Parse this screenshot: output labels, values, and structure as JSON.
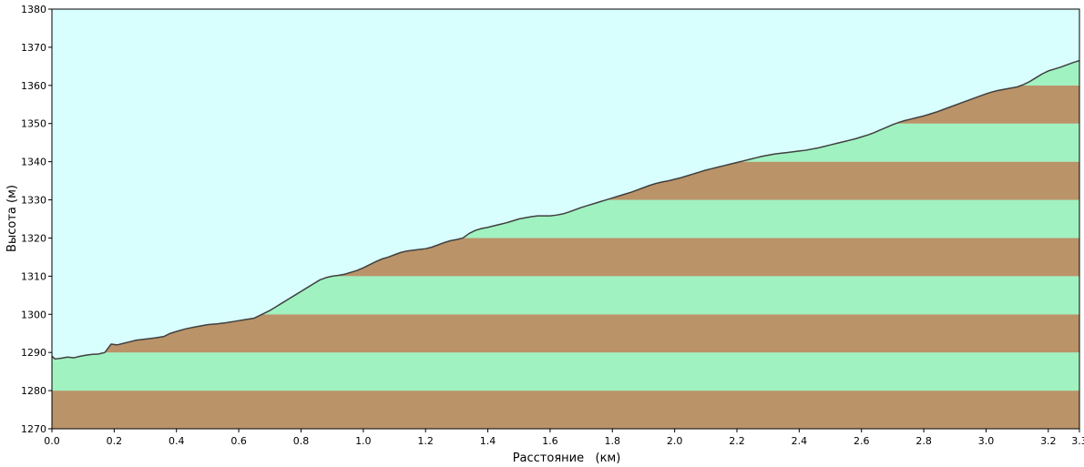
{
  "chart_data": {
    "type": "area",
    "title": "",
    "xlabel": "Расстояние   (км)",
    "ylabel": "Высота (м)",
    "xlim": [
      0.0,
      3.3
    ],
    "ylim": [
      1270,
      1380
    ],
    "x_ticks": [
      "0.0",
      "0.2",
      "0.4",
      "0.6",
      "0.8",
      "1.0",
      "1.2",
      "1.4",
      "1.6",
      "1.8",
      "2.0",
      "2.2",
      "2.4",
      "2.6",
      "2.8",
      "3.0",
      "3.2",
      "3.3"
    ],
    "x_tick_values": [
      0.0,
      0.2,
      0.4,
      0.6,
      0.8,
      1.0,
      1.2,
      1.4,
      1.6,
      1.8,
      2.0,
      2.2,
      2.4,
      2.6,
      2.8,
      3.0,
      3.2,
      3.3
    ],
    "y_ticks": [
      "1270",
      "1280",
      "1290",
      "1300",
      "1310",
      "1320",
      "1330",
      "1340",
      "1350",
      "1360",
      "1370",
      "1380"
    ],
    "y_tick_values": [
      1270,
      1280,
      1290,
      1300,
      1310,
      1320,
      1330,
      1340,
      1350,
      1360,
      1370,
      1380
    ],
    "band_step": 10,
    "grid": false,
    "legend": "none",
    "colors": {
      "sky": "#d9fefe",
      "band_brown": "#ba9369",
      "band_green": "#a0f2c0",
      "profile_line": "#404040",
      "axis": "#000000"
    },
    "series": [
      {
        "x": [
          0.0,
          0.01,
          0.03,
          0.05,
          0.07,
          0.09,
          0.11,
          0.13,
          0.15,
          0.17,
          0.19,
          0.21,
          0.23,
          0.25,
          0.27,
          0.3,
          0.33,
          0.36,
          0.38,
          0.4,
          0.43,
          0.46,
          0.48,
          0.5,
          0.53,
          0.56,
          0.59,
          0.62,
          0.65,
          0.68,
          0.7,
          0.72,
          0.74,
          0.76,
          0.78,
          0.8,
          0.82,
          0.84,
          0.86,
          0.88,
          0.9,
          0.92,
          0.94,
          0.96,
          0.98,
          1.0,
          1.02,
          1.04,
          1.06,
          1.08,
          1.1,
          1.12,
          1.14,
          1.16,
          1.18,
          1.2,
          1.22,
          1.24,
          1.26,
          1.28,
          1.3,
          1.32,
          1.34,
          1.36,
          1.38,
          1.4,
          1.42,
          1.44,
          1.46,
          1.48,
          1.5,
          1.52,
          1.54,
          1.56,
          1.58,
          1.6,
          1.62,
          1.64,
          1.66,
          1.68,
          1.7,
          1.72,
          1.74,
          1.76,
          1.78,
          1.8,
          1.82,
          1.84,
          1.86,
          1.88,
          1.9,
          1.92,
          1.94,
          1.96,
          1.98,
          2.0,
          2.02,
          2.04,
          2.06,
          2.08,
          2.1,
          2.12,
          2.14,
          2.16,
          2.18,
          2.2,
          2.22,
          2.24,
          2.26,
          2.28,
          2.3,
          2.32,
          2.34,
          2.36,
          2.38,
          2.4,
          2.42,
          2.44,
          2.46,
          2.48,
          2.5,
          2.52,
          2.54,
          2.56,
          2.58,
          2.6,
          2.62,
          2.64,
          2.66,
          2.68,
          2.7,
          2.72,
          2.74,
          2.76,
          2.78,
          2.8,
          2.82,
          2.84,
          2.86,
          2.88,
          2.9,
          2.92,
          2.94,
          2.96,
          2.98,
          3.0,
          3.02,
          3.04,
          3.06,
          3.08,
          3.1,
          3.12,
          3.14,
          3.16,
          3.18,
          3.2,
          3.22,
          3.24,
          3.26,
          3.28,
          3.3
        ],
        "y": [
          1289.0,
          1288.3,
          1288.5,
          1288.8,
          1288.6,
          1289.0,
          1289.3,
          1289.5,
          1289.6,
          1290.0,
          1292.2,
          1292.0,
          1292.4,
          1292.8,
          1293.2,
          1293.5,
          1293.8,
          1294.2,
          1295.0,
          1295.5,
          1296.2,
          1296.7,
          1297.0,
          1297.3,
          1297.5,
          1297.8,
          1298.2,
          1298.6,
          1299.0,
          1300.2,
          1301.0,
          1302.0,
          1303.0,
          1304.0,
          1305.0,
          1306.0,
          1307.0,
          1308.0,
          1309.0,
          1309.6,
          1310.0,
          1310.2,
          1310.5,
          1311.0,
          1311.5,
          1312.2,
          1313.0,
          1313.8,
          1314.5,
          1315.0,
          1315.6,
          1316.2,
          1316.6,
          1316.8,
          1317.0,
          1317.2,
          1317.6,
          1318.2,
          1318.8,
          1319.3,
          1319.6,
          1320.0,
          1321.2,
          1322.0,
          1322.5,
          1322.8,
          1323.2,
          1323.6,
          1324.0,
          1324.5,
          1325.0,
          1325.3,
          1325.6,
          1325.8,
          1325.8,
          1325.8,
          1326.0,
          1326.3,
          1326.8,
          1327.4,
          1328.0,
          1328.5,
          1329.0,
          1329.5,
          1330.0,
          1330.5,
          1331.0,
          1331.5,
          1332.0,
          1332.6,
          1333.2,
          1333.8,
          1334.3,
          1334.7,
          1335.0,
          1335.4,
          1335.8,
          1336.3,
          1336.8,
          1337.3,
          1337.8,
          1338.2,
          1338.6,
          1339.0,
          1339.4,
          1339.8,
          1340.2,
          1340.6,
          1341.0,
          1341.4,
          1341.7,
          1342.0,
          1342.2,
          1342.4,
          1342.6,
          1342.8,
          1343.0,
          1343.3,
          1343.6,
          1344.0,
          1344.4,
          1344.8,
          1345.2,
          1345.6,
          1346.0,
          1346.5,
          1347.0,
          1347.6,
          1348.3,
          1349.0,
          1349.7,
          1350.3,
          1350.8,
          1351.2,
          1351.6,
          1352.0,
          1352.5,
          1353.0,
          1353.6,
          1354.2,
          1354.8,
          1355.4,
          1356.0,
          1356.6,
          1357.2,
          1357.8,
          1358.3,
          1358.7,
          1359.0,
          1359.3,
          1359.6,
          1360.2,
          1361.0,
          1362.0,
          1363.0,
          1363.8,
          1364.3,
          1364.8,
          1365.4,
          1366.0,
          1366.5
        ]
      }
    ]
  }
}
